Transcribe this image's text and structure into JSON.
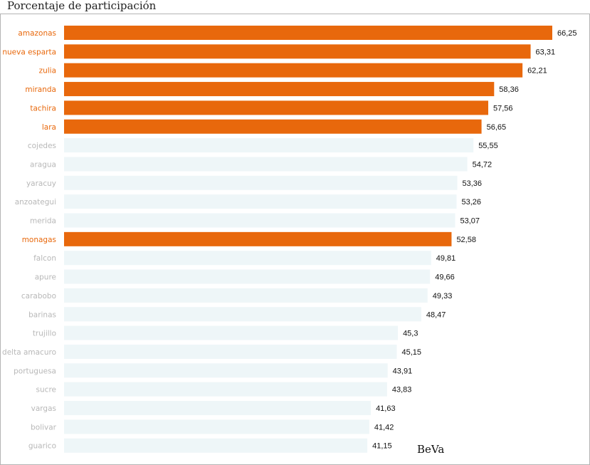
{
  "chart_data": {
    "type": "bar",
    "orientation": "horizontal",
    "title": "Porcentaje de participación",
    "xlabel": "",
    "ylabel": "",
    "xlim": [
      0,
      66.25
    ],
    "grid": false,
    "legend": "none",
    "categories": [
      "amazonas",
      "nueva esparta",
      "zulia",
      "miranda",
      "tachira",
      "lara",
      "cojedes",
      "aragua",
      "yaracuy",
      "anzoategui",
      "merida",
      "monagas",
      "falcon",
      "apure",
      "carabobo",
      "barinas",
      "trujillo",
      "delta amacuro",
      "portuguesa",
      "sucre",
      "vargas",
      "bolivar",
      "guarico"
    ],
    "values": [
      66.25,
      63.31,
      62.21,
      58.36,
      57.56,
      56.65,
      55.55,
      54.72,
      53.36,
      53.26,
      53.07,
      52.58,
      49.81,
      49.66,
      49.33,
      48.47,
      45.3,
      45.15,
      43.91,
      43.83,
      41.63,
      41.42,
      41.15
    ],
    "value_labels": [
      "66,25",
      "63,31",
      "62,21",
      "58,36",
      "57,56",
      "56,65",
      "55,55",
      "54,72",
      "53,36",
      "53,26",
      "53,07",
      "52,58",
      "49,81",
      "49,66",
      "49,33",
      "48,47",
      "45,3",
      "45,15",
      "43,91",
      "43,83",
      "41,63",
      "41,42",
      "41,15"
    ],
    "highlighted": [
      true,
      true,
      true,
      true,
      true,
      true,
      false,
      false,
      false,
      false,
      false,
      true,
      false,
      false,
      false,
      false,
      false,
      false,
      false,
      false,
      false,
      false,
      false
    ],
    "annotation": "BeVa"
  },
  "colors": {
    "highlight_bar": "#e8680c",
    "highlight_label": "#e8680c",
    "muted_bar": "#eef6f8",
    "muted_label": "#b8b8b8",
    "value_text": "#111111"
  }
}
